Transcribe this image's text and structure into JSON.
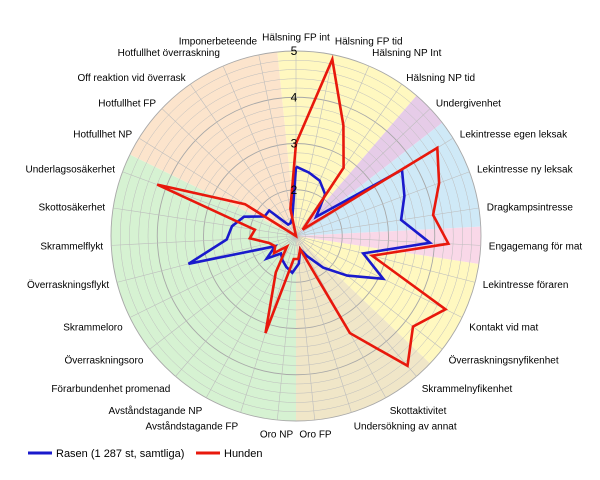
{
  "chart_data": {
    "type": "radar",
    "categories": [
      "Hälsning FP int",
      "Hälsning FP tid",
      "Hälsning NP Int",
      "Hälsning NP tid",
      "Undergivenhet",
      "Lekintresse egen leksak",
      "Lekintresse ny leksak",
      "Dragkampsintresse",
      "Engagemang för mat",
      "Lekintresse föraren",
      "Kontakt vid mat",
      "Överraskningsnyfikenhet",
      "Skrammelnyfikenhet",
      "Skottaktivitet",
      "Undersökning av annat",
      "Oro FP",
      "Oro NP",
      "Avståndstagande FP",
      "Avståndstagande NP",
      "Förarbundenhet promenad",
      "Överraskningsoro",
      "Skrammeloro",
      "Överraskningsflykt",
      "Skrammelflykt",
      "Skottosäkerhet",
      "Underlagsosäkerhet",
      "Hotfullhet NP",
      "Hotfullhet FP",
      "Off reaktion vid överrask",
      "Hotfullhet överraskning",
      "Imponerbeteende"
    ],
    "rlim": [
      1,
      5
    ],
    "r_ticks": [
      "1",
      "2",
      "3",
      "4",
      "5"
    ],
    "grid": true,
    "legend_position": "bottom-left",
    "series": [
      {
        "name": "Rasen (1 287 st, samtliga)",
        "color": "#1a1acc",
        "values": [
          2.5,
          2.4,
          2.3,
          2.1,
          1.6,
          3.7,
          3.5,
          3.3,
          3.9,
          2.5,
          3.1,
          2.4,
          1.9,
          1.5,
          1.3,
          1.6,
          1.8,
          1.7,
          1.6,
          1.5,
          1.8,
          1.5,
          3.4,
          2.5,
          2.4,
          2.2,
          1.8,
          1.8,
          1.3,
          1.3,
          1.4
        ]
      },
      {
        "name": "Hunden",
        "color": "#e8180c",
        "values": [
          3.0,
          4.9,
          3.6,
          2.8,
          1.2,
          4.6,
          4.3,
          4.0,
          4.3,
          2.7,
          4.6,
          4.2,
          4.7,
          3.4,
          1.3,
          1.5,
          1.5,
          3.2,
          1.9,
          1.3,
          1.6,
          1.5,
          1.6,
          2.0,
          1.9,
          4.2,
          2.3,
          1.0,
          1.0,
          1.0,
          1.6
        ]
      }
    ],
    "sectors": [
      {
        "from": 0,
        "to": 3,
        "color": "#fff8c0"
      },
      {
        "from": 4,
        "to": 4,
        "color": "#e6cce8"
      },
      {
        "from": 5,
        "to": 7,
        "color": "#cfe9f7"
      },
      {
        "from": 8,
        "to": 8,
        "color": "#f9d8e8"
      },
      {
        "from": 9,
        "to": 11,
        "color": "#fff8c0"
      },
      {
        "from": 12,
        "to": 15,
        "color": "#f0e6c8"
      },
      {
        "from": 16,
        "to": 25,
        "color": "#d6f2d2"
      },
      {
        "from": 26,
        "to": 30,
        "color": "#fce4cc"
      }
    ],
    "grid_color": "#bdbdbd"
  }
}
